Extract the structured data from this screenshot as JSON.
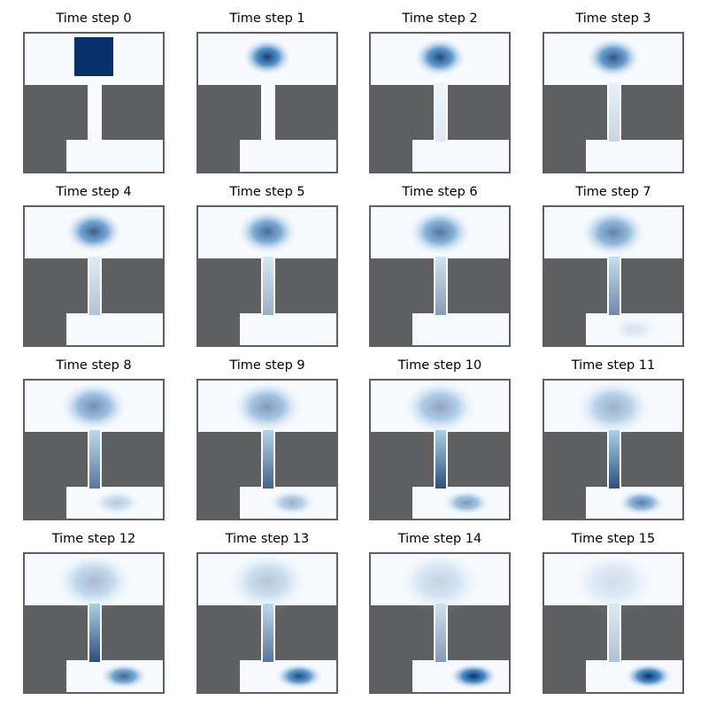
{
  "figure": {
    "panels": [
      {
        "title": "Time step 0"
      },
      {
        "title": "Time step 1"
      },
      {
        "title": "Time step 2"
      },
      {
        "title": "Time step 3"
      },
      {
        "title": "Time step 4"
      },
      {
        "title": "Time step 5"
      },
      {
        "title": "Time step 6"
      },
      {
        "title": "Time step 7"
      },
      {
        "title": "Time step 8"
      },
      {
        "title": "Time step 9"
      },
      {
        "title": "Time step 10"
      },
      {
        "title": "Time step 11"
      },
      {
        "title": "Time step 12"
      },
      {
        "title": "Time step 13"
      },
      {
        "title": "Time step 14"
      },
      {
        "title": "Time step 15"
      }
    ],
    "colors": {
      "wall": "#5e5f61",
      "background": "#f7fbff",
      "density_dark": "#08306b",
      "density_mid": "#2171b5",
      "density_light": "#9ecae1",
      "frame": "#5e5f61"
    }
  }
}
